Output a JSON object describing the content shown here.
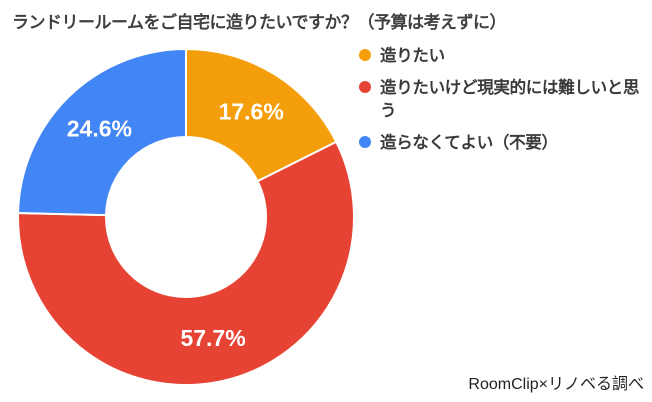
{
  "chart_data": {
    "type": "pie",
    "donut": true,
    "title": "ランドリールームをご自宅に造りたいですか？（予算は考えずに）",
    "categories": [
      "造りたい",
      "造りたいけど現実的には難しいと思う",
      "造らなくてよい（不要）"
    ],
    "values": [
      17.6,
      57.7,
      24.6
    ],
    "value_labels": [
      "17.6%",
      "57.7%",
      "24.6%"
    ],
    "colors": [
      "#f59e0b",
      "#e64334",
      "#4285f4"
    ],
    "legend_position": "right",
    "start_angle_deg": 0,
    "direction": "clockwise"
  },
  "source": "RoomClip×リノベる調べ"
}
